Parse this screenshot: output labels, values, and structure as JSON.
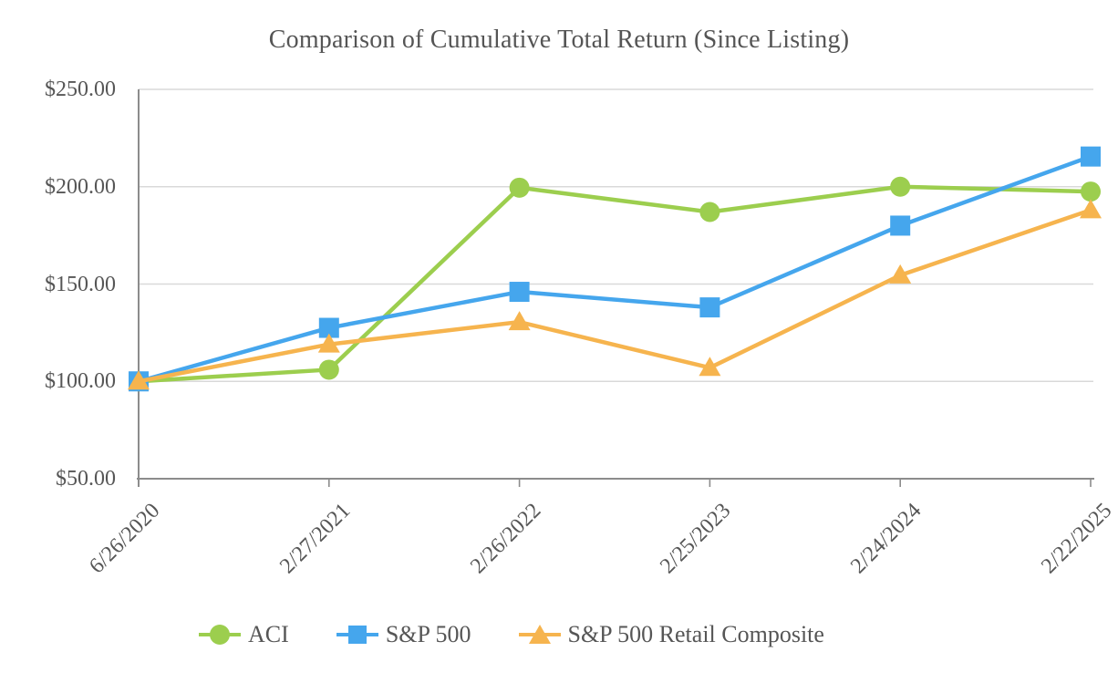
{
  "chart_data": {
    "type": "line",
    "title": "Comparison of Cumulative Total Return (Since Listing)",
    "x": [
      "6/26/2020",
      "2/27/2021",
      "2/26/2022",
      "2/25/2023",
      "2/24/2024",
      "2/22/2025"
    ],
    "series": [
      {
        "name": "ACI",
        "color": "#9CCE4E",
        "marker": "circle",
        "values": [
          100,
          106,
          199.5,
          187,
          200,
          197.5
        ]
      },
      {
        "name": "S&P 500",
        "color": "#45A6ED",
        "marker": "square",
        "values": [
          100,
          127.5,
          146,
          138,
          180,
          215.5
        ]
      },
      {
        "name": "S&P 500 Retail Composite",
        "color": "#F6B44E",
        "marker": "triangle",
        "values": [
          100,
          119,
          130.5,
          107,
          154.5,
          188
        ]
      }
    ],
    "ylim": [
      50,
      250
    ],
    "y_ticks": [
      {
        "value": 250,
        "label": "$250.00"
      },
      {
        "value": 200,
        "label": "$200.00"
      },
      {
        "value": 150,
        "label": "$150.00"
      },
      {
        "value": 100,
        "label": "$100.00"
      },
      {
        "value": 50,
        "label": "$50.00"
      }
    ],
    "grid": "horizontal",
    "legend_position": "bottom",
    "colors": {
      "grid": "#D9D9D9",
      "axis": "#8C8C8C",
      "text": "#565656"
    }
  }
}
